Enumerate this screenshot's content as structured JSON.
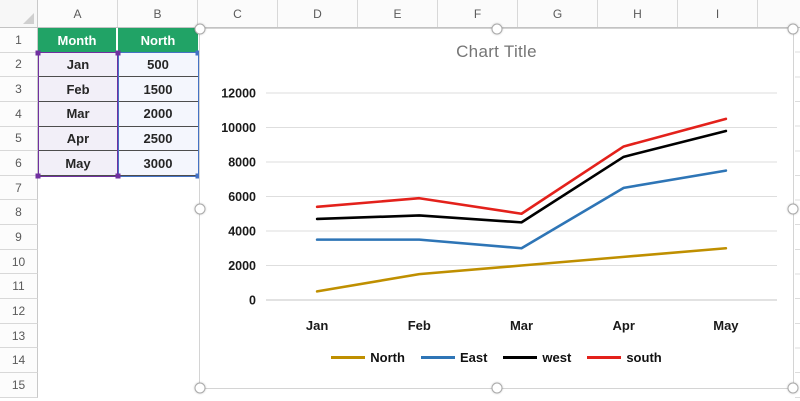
{
  "spreadsheet": {
    "column_headers": [
      "A",
      "B",
      "C",
      "D",
      "E",
      "F",
      "G",
      "H",
      "I"
    ],
    "row_headers": [
      "1",
      "2",
      "3",
      "4",
      "5",
      "6",
      "7",
      "8",
      "9",
      "10",
      "11",
      "12",
      "13",
      "14",
      "15"
    ],
    "table": {
      "headers": [
        "Month",
        "North"
      ],
      "rows": [
        [
          "Jan",
          "500"
        ],
        [
          "Feb",
          "1500"
        ],
        [
          "Mar",
          "2000"
        ],
        [
          "Apr",
          "2500"
        ],
        [
          "May",
          "3000"
        ]
      ],
      "header_color": "#21A366",
      "category_selection_color": "#7030A0",
      "value_selection_color": "#4472C4"
    }
  },
  "chart_data": {
    "type": "line",
    "title": "Chart Title",
    "categories": [
      "Jan",
      "Feb",
      "Mar",
      "Apr",
      "May"
    ],
    "series": [
      {
        "name": "North",
        "color": "#BF8F00",
        "values": [
          500,
          1500,
          2000,
          2500,
          3000
        ]
      },
      {
        "name": "East",
        "color": "#2E75B6",
        "values": [
          3500,
          3500,
          3000,
          6500,
          7500
        ]
      },
      {
        "name": "west",
        "color": "#000000",
        "values": [
          4700,
          4900,
          4500,
          8300,
          9800
        ]
      },
      {
        "name": "south",
        "color": "#E3211B",
        "values": [
          5400,
          5900,
          5000,
          8900,
          10500
        ]
      }
    ],
    "y_ticks": [
      0,
      2000,
      4000,
      6000,
      8000,
      10000,
      12000
    ],
    "ylim": [
      0,
      12000
    ],
    "grid": true,
    "legend_position": "bottom"
  }
}
